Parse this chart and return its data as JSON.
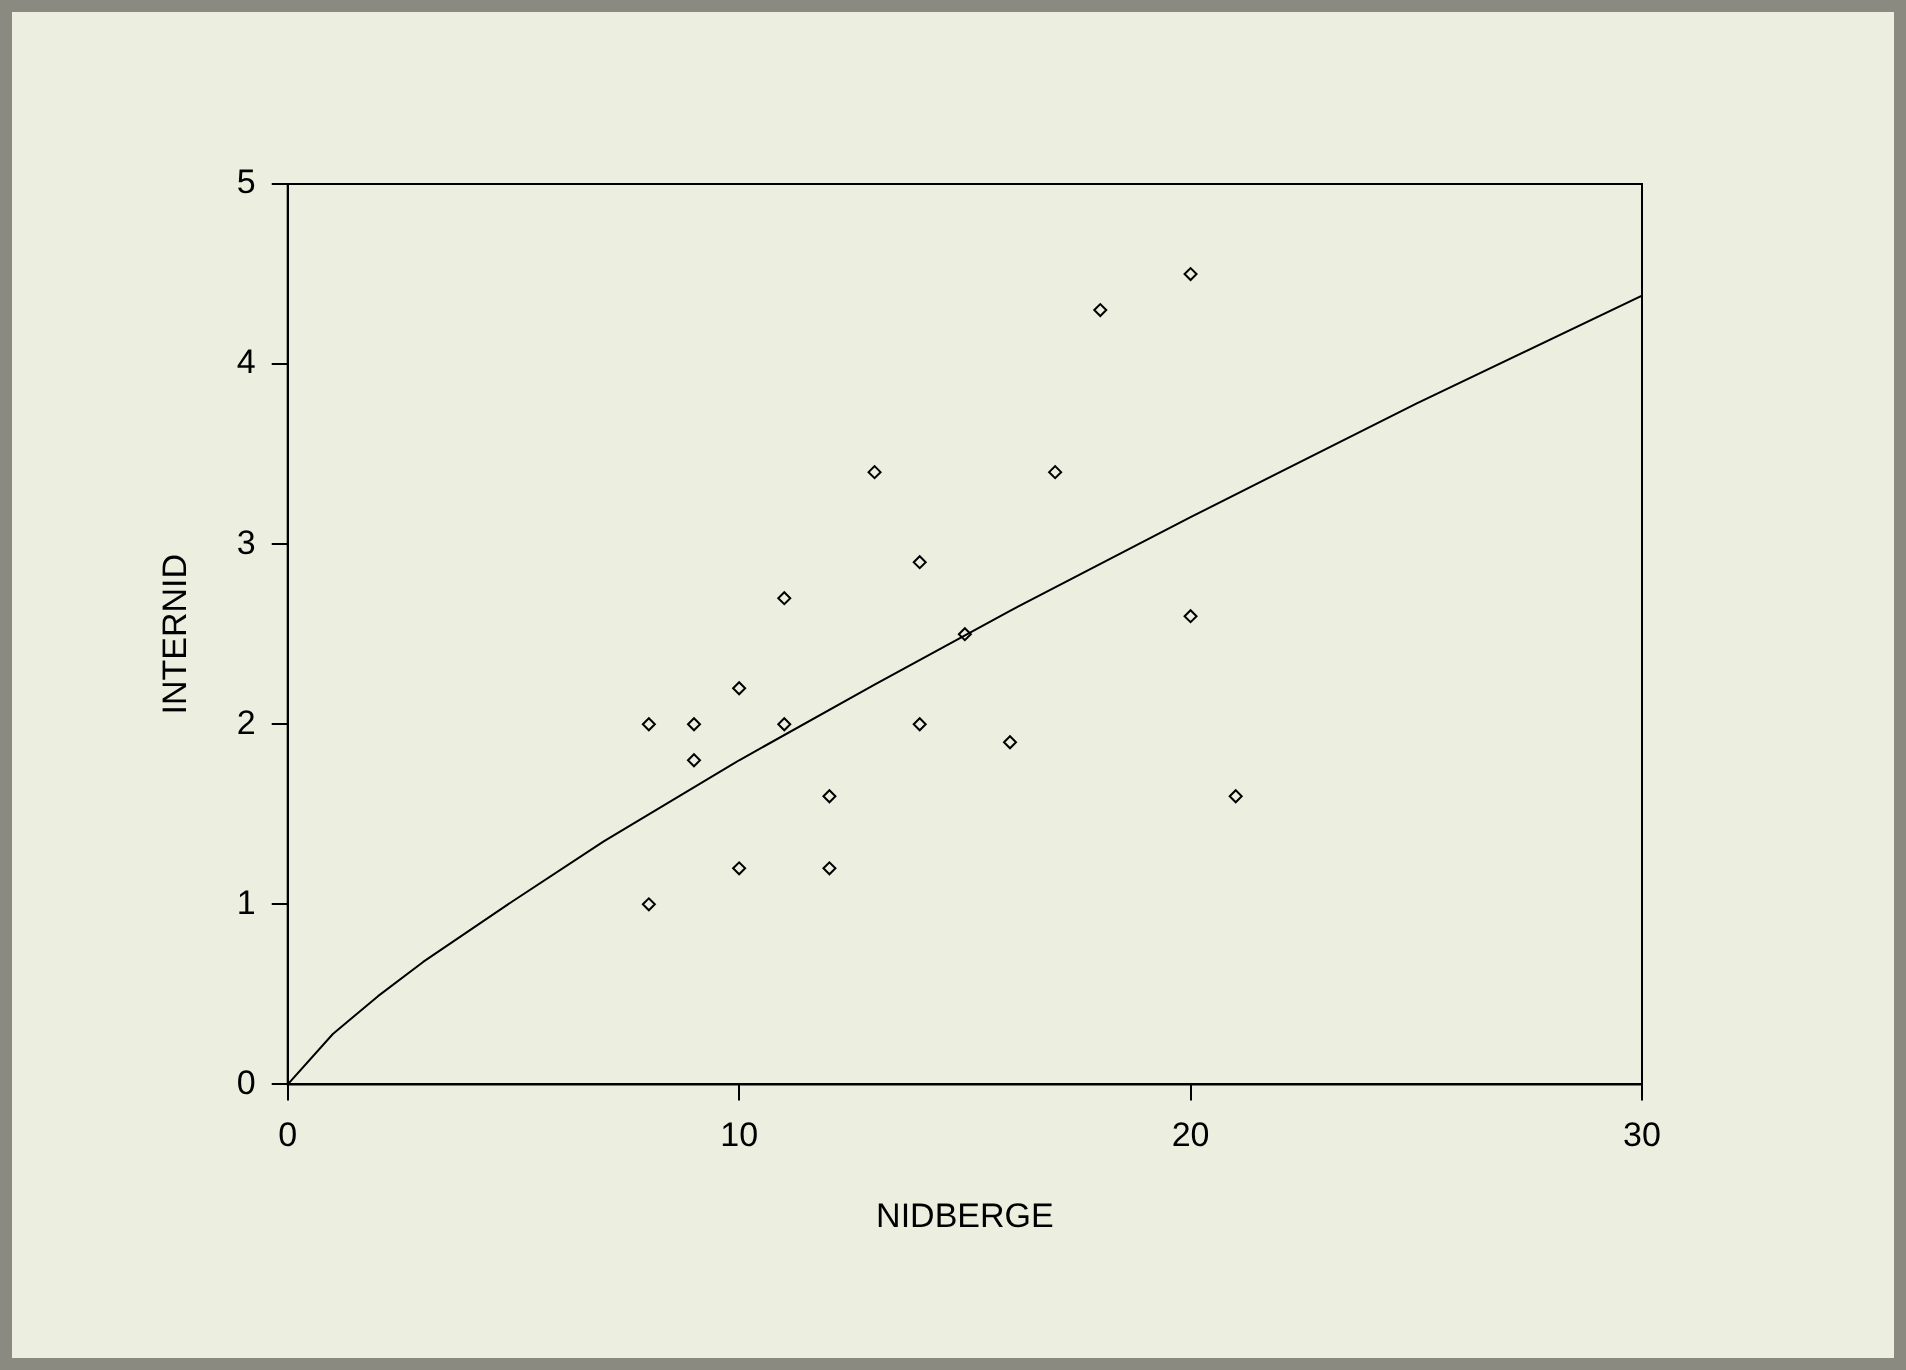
{
  "chart_data": {
    "type": "scatter",
    "xlabel": "NIDBERGE",
    "ylabel": "INTERNID",
    "xlim": [
      0,
      30
    ],
    "xticks": [
      0,
      10,
      20,
      30
    ],
    "ylim": [
      0,
      5
    ],
    "yticks": [
      0,
      1,
      2,
      3,
      4,
      5
    ],
    "grid": false,
    "legend": false,
    "marker": "diamond",
    "series": [
      {
        "color": "#000000",
        "x": [
          8,
          8,
          9,
          9,
          10,
          10,
          11,
          11,
          12,
          12,
          13,
          14,
          14,
          15,
          16,
          17,
          18,
          20,
          20,
          21
        ],
        "values": [
          2,
          1,
          2,
          1.8,
          2.2,
          1.2,
          2.7,
          2,
          1.6,
          1.2,
          3.4,
          2.9,
          2,
          2.5,
          1.9,
          3.4,
          4.3,
          4.5,
          2.6,
          1.6
        ]
      },
      {
        "type": "line",
        "color": "#000000",
        "marker": "none",
        "line_style": "solid",
        "x": [
          0,
          1,
          2,
          3,
          5,
          7,
          10,
          13,
          16,
          20,
          25,
          30
        ],
        "values": [
          0,
          0.28,
          0.49,
          0.68,
          1.02,
          1.35,
          1.8,
          2.22,
          2.63,
          3.15,
          3.78,
          4.38
        ]
      }
    ]
  }
}
